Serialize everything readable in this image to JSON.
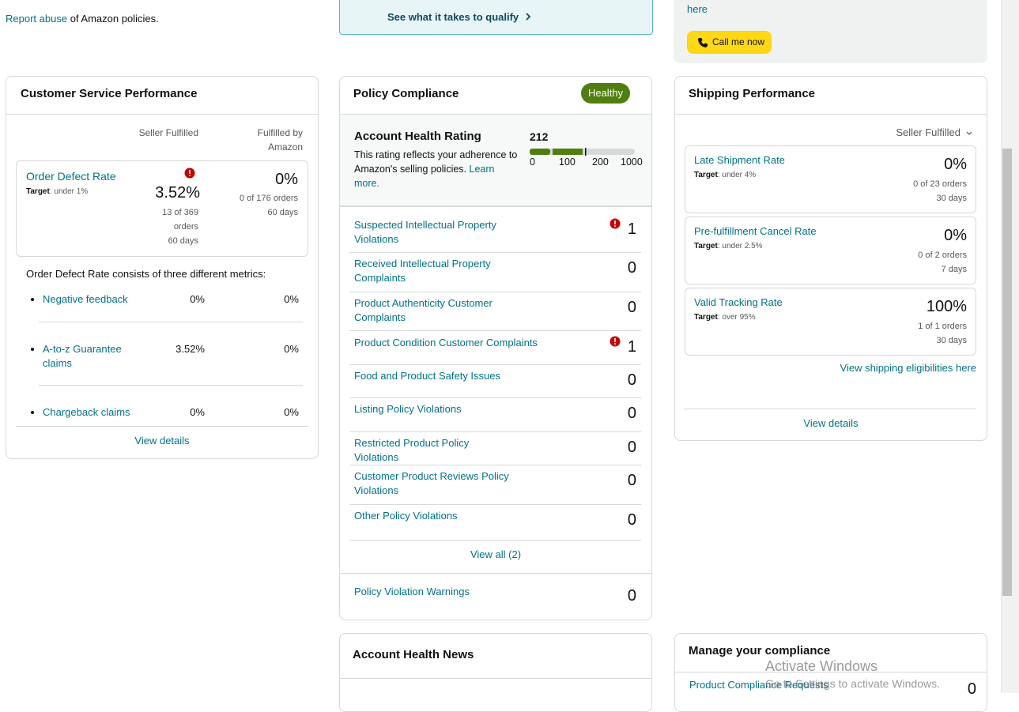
{
  "top": {
    "report_abuse": "Report abuse",
    "report_tail": "of Amazon policies.",
    "qualify_link": "See what it takes to qualify",
    "here_link": "here",
    "call_button": "Call me now"
  },
  "customer_service": {
    "title": "Customer Service Performance",
    "col_seller": "Seller Fulfilled",
    "col_fba": "Fulfilled by Amazon",
    "odr": {
      "label": "Order Defect Rate",
      "target_label": "Target",
      "target": "under 1%",
      "seller_value": "3.52%",
      "seller_detail": "13 of 369 orders",
      "seller_days": "60 days",
      "fba_value": "0%",
      "fba_detail": "0 of 176 orders",
      "fba_days": "60 days"
    },
    "metrics_intro": "Order Defect Rate consists of three different metrics:",
    "metrics": [
      {
        "label": "Negative feedback",
        "seller": "0%",
        "fba": "0%"
      },
      {
        "label": "A-to-z Guarantee claims",
        "seller": "3.52%",
        "fba": "0%"
      },
      {
        "label": "Chargeback claims",
        "seller": "0%",
        "fba": "0%"
      }
    ],
    "view_details": "View details"
  },
  "policy": {
    "title": "Policy Compliance",
    "status": "Healthy",
    "rating_title": "Account Health Rating",
    "rating": "212",
    "rating_desc": "This rating reflects your adherence to Amazon's selling policies.",
    "learn_more": "Learn more.",
    "scale": [
      "0",
      "100",
      "200",
      "1000"
    ],
    "rows": [
      {
        "label": "Suspected Intellectual Property Violations",
        "value": "1",
        "alert": true
      },
      {
        "label": "Received Intellectual Property Complaints",
        "value": "0",
        "alert": false
      },
      {
        "label": "Product Authenticity Customer Complaints",
        "value": "0",
        "alert": false
      },
      {
        "label": "Product Condition Customer Complaints",
        "value": "1",
        "alert": true
      },
      {
        "label": "Food and Product Safety Issues",
        "value": "0",
        "alert": false
      },
      {
        "label": "Listing Policy Violations",
        "value": "0",
        "alert": false
      },
      {
        "label": "Restricted Product Policy Violations",
        "value": "0",
        "alert": false
      },
      {
        "label": "Customer Product Reviews Policy Violations",
        "value": "0",
        "alert": false
      },
      {
        "label": "Other Policy Violations",
        "value": "0",
        "alert": false
      }
    ],
    "view_all": "View all (2)",
    "warnings": {
      "label": "Policy Violation Warnings",
      "value": "0"
    }
  },
  "shipping": {
    "title": "Shipping Performance",
    "filter": "Seller Fulfilled",
    "metrics": [
      {
        "label": "Late Shipment Rate",
        "target_label": "Target",
        "target": "under 4%",
        "value": "0%",
        "detail": "0 of 23 orders",
        "days": "30 days"
      },
      {
        "label": "Pre-fulfillment Cancel Rate",
        "target_label": "Target",
        "target": "under 2.5%",
        "value": "0%",
        "detail": "0 of 2 orders",
        "days": "7 days"
      },
      {
        "label": "Valid Tracking Rate",
        "target_label": "Target",
        "target": "over 95%",
        "value": "100%",
        "detail": "1 of 1 orders",
        "days": "30 days"
      }
    ],
    "eligibilities": "View shipping eligibilities here",
    "view_details": "View details"
  },
  "news": {
    "title": "Account Health News"
  },
  "compliance": {
    "title": "Manage your compliance",
    "row_label": "Product Compliance Requests",
    "row_value": "0"
  },
  "watermark": {
    "title": "Activate Windows",
    "subtitle": "Go to Settings to activate Windows."
  }
}
